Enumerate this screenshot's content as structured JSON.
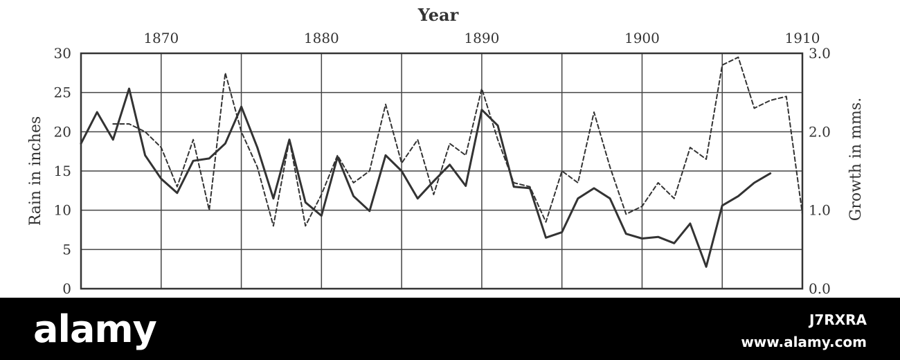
{
  "chart_data": {
    "type": "line",
    "xlabel": "Year",
    "x_ticks": [
      1870,
      1880,
      1890,
      1900,
      1910
    ],
    "x_range": [
      1865,
      1910
    ],
    "y_left": {
      "label": "Rain in inches",
      "ticks": [
        0,
        5,
        10,
        15,
        20,
        25,
        30
      ],
      "range": [
        0,
        30
      ]
    },
    "y_right": {
      "label": "Growth in mms.",
      "ticks": [
        "0.0",
        "1.0",
        "2.0",
        "3.0"
      ],
      "range": [
        0,
        3
      ]
    },
    "grid": true,
    "series": [
      {
        "axis": "left",
        "style": "solid",
        "x": [
          1865,
          1866,
          1867,
          1868,
          1869,
          1870,
          1871,
          1872,
          1873,
          1874,
          1875,
          1876,
          1877,
          1878,
          1879,
          1880,
          1881,
          1882,
          1883,
          1884,
          1885,
          1886,
          1887,
          1888,
          1889,
          1890,
          1891,
          1892,
          1893,
          1894,
          1895,
          1896,
          1897,
          1898,
          1899,
          1900,
          1901,
          1902,
          1903,
          1904,
          1905,
          1906,
          1907,
          1908
        ],
        "values": [
          18.5,
          22.5,
          19,
          25.5,
          17,
          14,
          12.2,
          16.3,
          16.6,
          18.5,
          23.2,
          18,
          11.5,
          19,
          11,
          9.3,
          16.8,
          11.8,
          9.9,
          17,
          15,
          11.5,
          13.7,
          15.8,
          13.1,
          22.8,
          20.8,
          13,
          12.8,
          6.5,
          7.2,
          11.5,
          12.8,
          11.5,
          7,
          6.4,
          6.6,
          5.8,
          8.3,
          2.8,
          10.6,
          11.8,
          13.5,
          14.7
        ]
      },
      {
        "axis": "right",
        "style": "dashed",
        "x": [
          1867,
          1868,
          1869,
          1870,
          1871,
          1872,
          1873,
          1874,
          1875,
          1876,
          1877,
          1878,
          1879,
          1880,
          1881,
          1882,
          1883,
          1884,
          1885,
          1886,
          1887,
          1888,
          1889,
          1890,
          1891,
          1892,
          1893,
          1894,
          1895,
          1896,
          1897,
          1898,
          1899,
          1900,
          1901,
          1902,
          1903,
          1904,
          1905,
          1906,
          1907,
          1908,
          1909,
          1910
        ],
        "values": [
          2.1,
          2.1,
          2.0,
          1.8,
          1.3,
          1.9,
          1.0,
          2.75,
          2.0,
          1.55,
          0.8,
          1.9,
          0.8,
          1.2,
          1.7,
          1.35,
          1.5,
          2.35,
          1.6,
          1.9,
          1.2,
          1.85,
          1.7,
          2.55,
          1.9,
          1.35,
          1.3,
          0.85,
          1.5,
          1.35,
          2.25,
          1.55,
          0.95,
          1.05,
          1.35,
          1.15,
          1.8,
          1.65,
          2.85,
          2.95,
          2.3,
          2.4,
          2.45,
          0.95
        ]
      }
    ]
  },
  "watermark": {
    "logo": "alamy",
    "code": "J7RXRA",
    "site": "www.alamy.com"
  }
}
